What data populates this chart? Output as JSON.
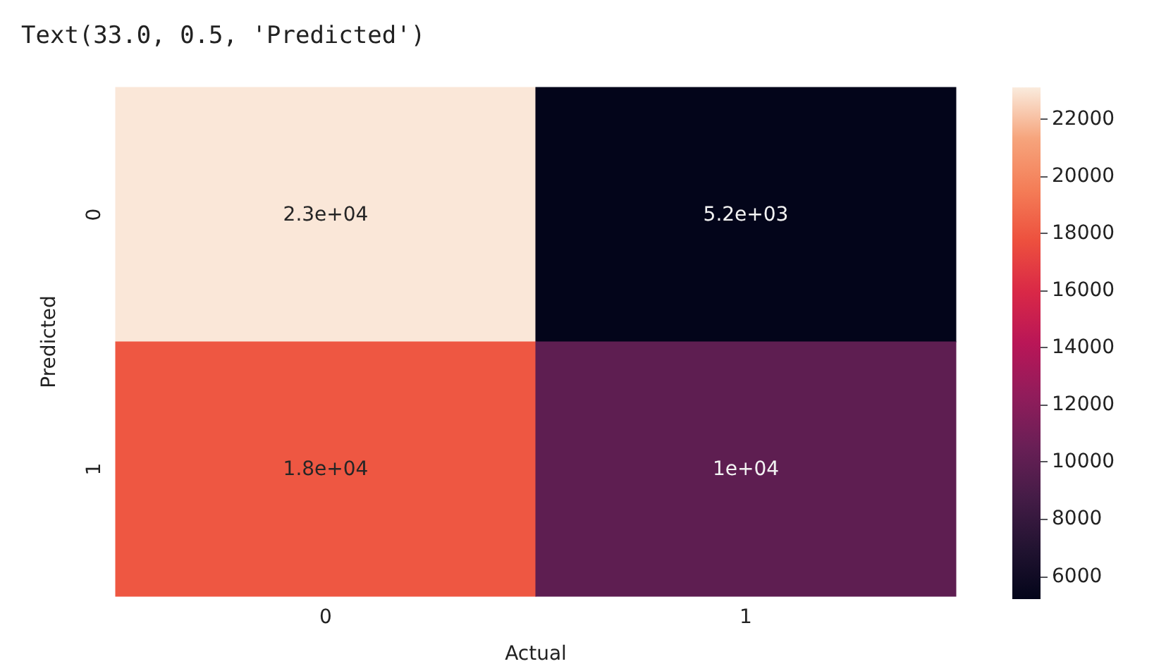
{
  "chart_data": {
    "type": "heatmap",
    "title": "Text(33.0, 0.5, 'Predicted')",
    "xlabel": "Actual",
    "ylabel": "Predicted",
    "categories": [
      "0",
      "1"
    ],
    "y_categories": [
      "0",
      "1"
    ],
    "cells": [
      [
        23000,
        5200
      ],
      [
        18000,
        10000
      ]
    ],
    "cell_labels": [
      [
        "2.3e+04",
        "5.2e+03"
      ],
      [
        "1.8e+04",
        "1e+04"
      ]
    ],
    "clim": [
      5200,
      23100
    ],
    "cticks": [
      6000,
      8000,
      10000,
      12000,
      14000,
      16000,
      18000,
      20000,
      22000
    ]
  }
}
